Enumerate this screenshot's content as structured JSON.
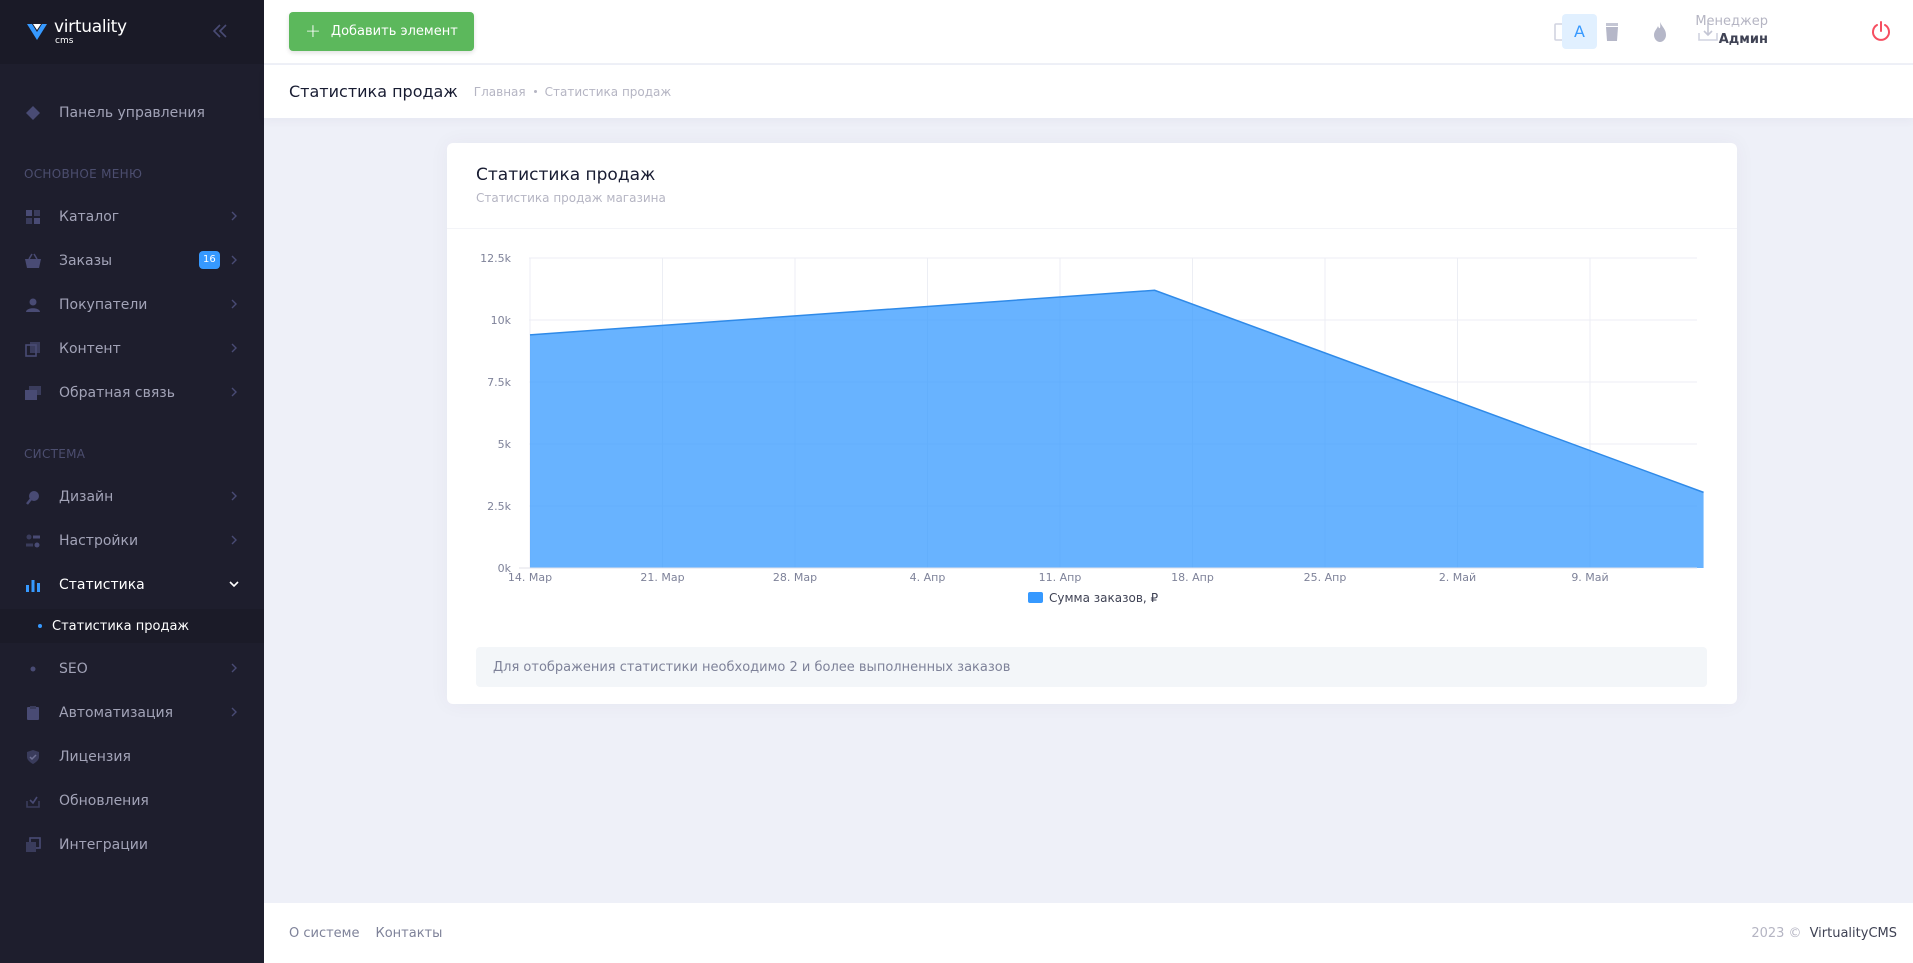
{
  "sidebar": {
    "logo": {
      "main": "virtuality",
      "sub": "cms"
    },
    "dashboard": "Панель управления",
    "section_main": "ОСНОВНОЕ МЕНЮ",
    "items_main": [
      {
        "label": "Каталог",
        "icon": "grid-icon"
      },
      {
        "label": "Заказы",
        "icon": "basket-icon",
        "badge": "16"
      },
      {
        "label": "Покупатели",
        "icon": "user-icon"
      },
      {
        "label": "Контент",
        "icon": "pages-icon"
      },
      {
        "label": "Обратная связь",
        "icon": "chat-icon"
      }
    ],
    "section_system": "СИСТЕМА",
    "items_system": [
      {
        "label": "Дизайн",
        "icon": "brush-icon"
      },
      {
        "label": "Настройки",
        "icon": "settings-icon"
      },
      {
        "label": "Статистика",
        "icon": "bar-chart-icon",
        "active": true
      },
      {
        "label": "SEO",
        "icon": "seo-icon"
      },
      {
        "label": "Автоматизация",
        "icon": "clipboard-icon"
      },
      {
        "label": "Лицензия",
        "icon": "shield-check-icon"
      },
      {
        "label": "Обновления",
        "icon": "download-check-icon"
      },
      {
        "label": "Интеграции",
        "icon": "layers-icon"
      }
    ],
    "submenu_active": "Статистика продаж"
  },
  "header": {
    "add_button": "Добавить элемент",
    "user_role": "Менеджер",
    "user_name": "Админ",
    "avatar_letter": "A",
    "icons": [
      "sign-out-icon",
      "cup-icon",
      "fire-icon",
      "download-icon",
      "power-icon"
    ],
    "power_color": "#f64e60"
  },
  "subheader": {
    "title": "Статистика продаж",
    "breadcrumb": [
      "Главная",
      "Статистика продаж"
    ]
  },
  "card": {
    "title": "Статистика продаж",
    "subtitle": "Статистика продаж магазина",
    "notice": "Для отображения статистики необходимо 2 и более выполненных заказов"
  },
  "chart_data": {
    "type": "area",
    "x": [
      "14. Мар",
      "16. Апр",
      "15. Май"
    ],
    "x_tick_labels": [
      "14. Мар",
      "21. Мар",
      "28. Мар",
      "4. Апр",
      "11. Апр",
      "18. Апр",
      "25. Апр",
      "2. Май",
      "9. Май"
    ],
    "series": [
      {
        "name": "Сумма заказов, ₽",
        "values": [
          9400,
          11200,
          3050
        ],
        "color": "#3699ff"
      }
    ],
    "y_ticks": [
      "0k",
      "2.5k",
      "5k",
      "7.5k",
      "10k",
      "12.5k"
    ],
    "ylim": [
      0,
      12500
    ],
    "grid": true,
    "legend_position": "bottom"
  },
  "footer": {
    "links": [
      "О системе",
      "Контакты"
    ],
    "year": "2023 ©",
    "brand": "VirtualityCMS"
  }
}
